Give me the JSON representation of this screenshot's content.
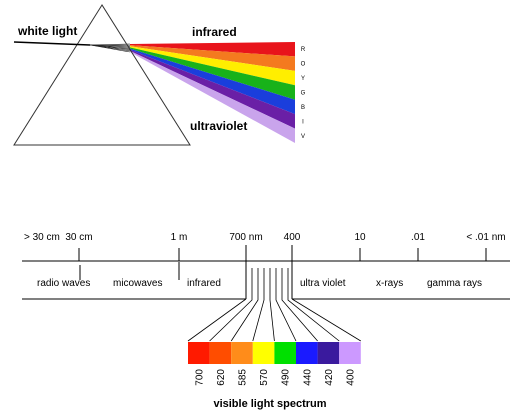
{
  "prism": {
    "white_light_label": "white light",
    "infrared_label": "infrared",
    "ultraviolet_label": "ultraviolet",
    "band_letters": [
      "R",
      "O",
      "Y",
      "G",
      "B",
      "I",
      "V"
    ],
    "band_colors": [
      "#e8141b",
      "#f47a1f",
      "#ffee00",
      "#18b21a",
      "#1a3edc",
      "#6a1fa6",
      "#c9a4ec"
    ]
  },
  "spectrum": {
    "scale_labels": [
      "> 30 cm",
      "30 cm",
      "1 m",
      "700 nm",
      "400",
      "10",
      ".01",
      "< .01 nm"
    ],
    "region_labels": [
      "radio waves",
      "micowaves",
      "infrared",
      "ultra violet",
      "x-rays",
      "gamma rays"
    ]
  },
  "visible": {
    "swatch_colors": [
      "#ff1a00",
      "#ff4d00",
      "#ff8c1a",
      "#ffff00",
      "#00e000",
      "#1a1aff",
      "#3a1a9e",
      "#cc99ff"
    ],
    "wavelength_labels": [
      "700",
      "620",
      "585",
      "570",
      "490",
      "440",
      "420",
      "400"
    ],
    "caption": "visible light spectrum"
  }
}
